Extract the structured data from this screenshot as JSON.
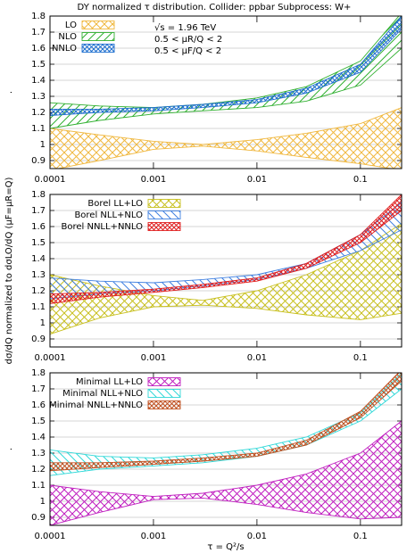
{
  "chart_data": [
    {
      "type": "band",
      "title": "DY normalized τ distribution.   Collider: ppbar   Subprocess: W+",
      "annotations": [
        "√s = 1.96 TeV",
        "0.5 < μR/Q < 2",
        "0.5 < μF/Q < 2"
      ],
      "ylabel": ".",
      "log_x": true,
      "grid": true,
      "legend": "top-left",
      "xlim": [
        0.0001,
        0.25
      ],
      "xticks": [
        0.0001,
        0.001,
        0.01,
        0.1
      ],
      "ylim": [
        0.85,
        1.8
      ],
      "yticks": [
        0.9,
        1,
        1.1,
        1.2,
        1.3,
        1.4,
        1.5,
        1.6,
        1.7,
        1.8
      ],
      "x": [
        0.0001,
        0.0003,
        0.001,
        0.003,
        0.01,
        0.03,
        0.1,
        0.25
      ],
      "series": [
        {
          "name": "LO",
          "color": "#f0b840",
          "hatch": "cross",
          "lower": [
            0.84,
            0.9,
            0.97,
            0.99,
            0.96,
            0.92,
            0.88,
            0.84
          ],
          "upper": [
            1.1,
            1.06,
            1.02,
            1.0,
            1.03,
            1.07,
            1.13,
            1.23
          ]
        },
        {
          "name": "NLO",
          "color": "#30b030",
          "hatch": "diag",
          "lower": [
            1.1,
            1.15,
            1.19,
            1.21,
            1.23,
            1.27,
            1.37,
            1.6
          ],
          "upper": [
            1.26,
            1.24,
            1.23,
            1.25,
            1.29,
            1.36,
            1.52,
            1.82
          ]
        },
        {
          "name": "NNLO",
          "color": "#2070d0",
          "hatch": "dense",
          "lower": [
            1.18,
            1.2,
            1.21,
            1.23,
            1.26,
            1.32,
            1.45,
            1.72
          ],
          "upper": [
            1.22,
            1.22,
            1.23,
            1.25,
            1.28,
            1.35,
            1.5,
            1.8
          ]
        }
      ]
    },
    {
      "type": "band",
      "ylabel": "dσ/dQ  normalized to  dσLO/dQ (μF=μR=Q)",
      "log_x": true,
      "grid": true,
      "legend": "top-left",
      "xlim": [
        0.0001,
        0.25
      ],
      "xticks": [
        0.0001,
        0.001,
        0.01,
        0.1
      ],
      "ylim": [
        0.85,
        1.8
      ],
      "yticks": [
        0.9,
        1,
        1.1,
        1.2,
        1.3,
        1.4,
        1.5,
        1.6,
        1.7,
        1.8
      ],
      "x": [
        0.0001,
        0.0003,
        0.001,
        0.003,
        0.01,
        0.03,
        0.1,
        0.25
      ],
      "series": [
        {
          "name": "Borel LL+LO",
          "color": "#c8c020",
          "hatch": "cross",
          "lower": [
            0.93,
            1.03,
            1.1,
            1.11,
            1.09,
            1.05,
            1.02,
            1.06
          ],
          "upper": [
            1.3,
            1.23,
            1.17,
            1.14,
            1.2,
            1.3,
            1.45,
            1.62
          ]
        },
        {
          "name": "Borel NLL+NLO",
          "color": "#4080e0",
          "hatch": "rdiag",
          "lower": [
            1.15,
            1.18,
            1.2,
            1.23,
            1.27,
            1.34,
            1.45,
            1.58
          ],
          "upper": [
            1.28,
            1.26,
            1.25,
            1.27,
            1.3,
            1.37,
            1.55,
            1.75
          ]
        },
        {
          "name": "Borel NNLL+NNLO",
          "color": "#e02020",
          "hatch": "dense",
          "lower": [
            1.12,
            1.16,
            1.19,
            1.22,
            1.26,
            1.34,
            1.5,
            1.7
          ],
          "upper": [
            1.18,
            1.19,
            1.21,
            1.24,
            1.28,
            1.37,
            1.55,
            1.8
          ]
        }
      ]
    },
    {
      "type": "band",
      "ylabel": ".",
      "xlabel": "τ = Q²/s",
      "log_x": true,
      "grid": true,
      "legend": "top-left",
      "xlim": [
        0.0001,
        0.25
      ],
      "xticks": [
        0.0001,
        0.001,
        0.01,
        0.1
      ],
      "ylim": [
        0.85,
        1.8
      ],
      "yticks": [
        0.9,
        1,
        1.1,
        1.2,
        1.3,
        1.4,
        1.5,
        1.6,
        1.7,
        1.8
      ],
      "x": [
        0.0001,
        0.0003,
        0.001,
        0.003,
        0.01,
        0.03,
        0.1,
        0.25
      ],
      "series": [
        {
          "name": "Minimal LL+LO",
          "color": "#c020c0",
          "hatch": "cross",
          "lower": [
            0.85,
            0.93,
            1.01,
            1.02,
            0.98,
            0.93,
            0.89,
            0.9
          ],
          "upper": [
            1.1,
            1.06,
            1.03,
            1.05,
            1.1,
            1.17,
            1.3,
            1.5
          ]
        },
        {
          "name": "Minimal NLL+NLO",
          "color": "#30d8d8",
          "hatch": "rdiag",
          "lower": [
            1.16,
            1.2,
            1.22,
            1.24,
            1.28,
            1.35,
            1.5,
            1.7
          ],
          "upper": [
            1.32,
            1.28,
            1.27,
            1.29,
            1.33,
            1.4,
            1.55,
            1.8
          ]
        },
        {
          "name": "Minimal NNLL+NNLO",
          "color": "#c05020",
          "hatch": "dense",
          "lower": [
            1.19,
            1.21,
            1.23,
            1.25,
            1.28,
            1.35,
            1.52,
            1.75
          ],
          "upper": [
            1.24,
            1.24,
            1.25,
            1.27,
            1.3,
            1.38,
            1.56,
            1.82
          ]
        }
      ]
    }
  ]
}
